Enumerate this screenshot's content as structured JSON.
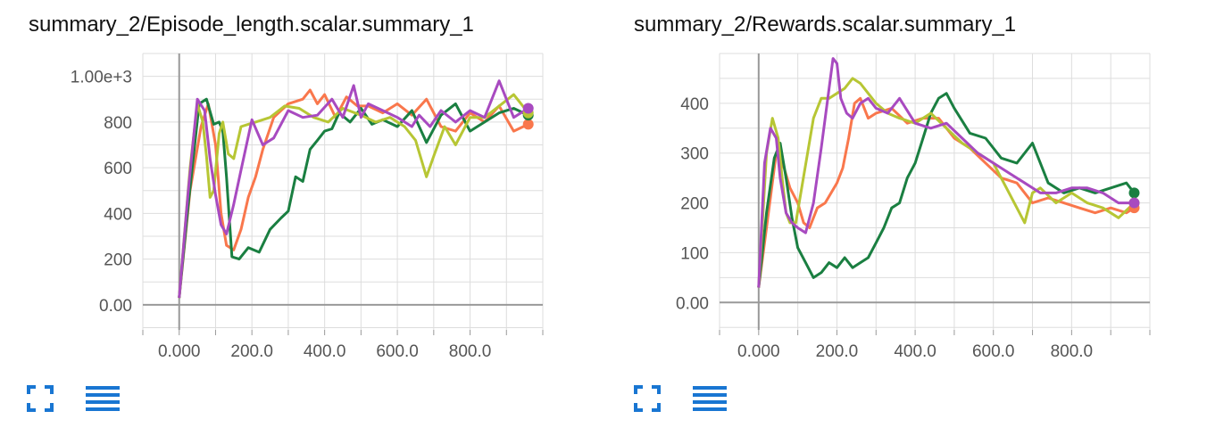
{
  "colors": {
    "orange": "#f9774c",
    "green": "#1a7f41",
    "lime": "#b7c634",
    "purple": "#a84ac0",
    "grid": "#dddddd",
    "axis": "#999999",
    "icon": "#1976d2"
  },
  "icons": {
    "expand": "fullscreen-icon",
    "data": "list-icon"
  },
  "chart_data": [
    {
      "type": "line",
      "title": "summary_2/Episode_length.scalar.summary_1",
      "xlabel": "",
      "ylabel": "",
      "xlim": [
        -100,
        1000
      ],
      "ylim": [
        -110,
        1100
      ],
      "xticks": [
        0,
        200,
        400,
        600,
        800
      ],
      "xtick_labels": [
        "0.000",
        "200.0",
        "400.0",
        "600.0",
        "800.0"
      ],
      "yticks": [
        0,
        200,
        400,
        600,
        800,
        1000
      ],
      "ytick_labels": [
        "0.00",
        "200",
        "400",
        "600",
        "800",
        "1.00e+3"
      ],
      "grid": true,
      "series": [
        {
          "color": "orange",
          "x": [
            0,
            30,
            60,
            80,
            100,
            115,
            130,
            150,
            170,
            190,
            210,
            230,
            260,
            300,
            340,
            360,
            380,
            400,
            430,
            460,
            490,
            520,
            560,
            600,
            640,
            680,
            720,
            760,
            800,
            840,
            880,
            920,
            960
          ],
          "y": [
            30,
            500,
            780,
            880,
            700,
            400,
            260,
            240,
            330,
            470,
            560,
            680,
            820,
            880,
            900,
            940,
            880,
            920,
            820,
            910,
            870,
            870,
            840,
            880,
            830,
            900,
            780,
            760,
            840,
            800,
            870,
            760,
            790
          ]
        },
        {
          "color": "green",
          "x": [
            0,
            25,
            55,
            75,
            95,
            110,
            120,
            130,
            145,
            165,
            190,
            220,
            250,
            280,
            300,
            320,
            340,
            360,
            380,
            400,
            420,
            440,
            470,
            500,
            530,
            560,
            600,
            640,
            680,
            720,
            760,
            800,
            840,
            880,
            920,
            960
          ],
          "y": [
            30,
            440,
            880,
            900,
            790,
            800,
            760,
            560,
            210,
            200,
            250,
            230,
            330,
            380,
            410,
            560,
            540,
            680,
            720,
            760,
            770,
            840,
            800,
            860,
            790,
            810,
            780,
            850,
            710,
            830,
            880,
            760,
            800,
            840,
            860,
            830
          ]
        },
        {
          "color": "lime",
          "x": [
            0,
            30,
            50,
            65,
            75,
            85,
            95,
            110,
            120,
            135,
            150,
            170,
            190,
            210,
            250,
            290,
            330,
            370,
            410,
            450,
            500,
            540,
            580,
            620,
            650,
            680,
            700,
            730,
            760,
            800,
            840,
            880,
            920,
            960
          ],
          "y": [
            30,
            600,
            880,
            800,
            650,
            470,
            500,
            750,
            800,
            660,
            640,
            780,
            790,
            800,
            820,
            870,
            860,
            820,
            800,
            860,
            830,
            800,
            820,
            780,
            720,
            560,
            650,
            780,
            700,
            820,
            820,
            870,
            920,
            840
          ]
        },
        {
          "color": "purple",
          "x": [
            0,
            25,
            50,
            70,
            85,
            100,
            115,
            130,
            150,
            170,
            200,
            230,
            260,
            300,
            340,
            380,
            420,
            450,
            480,
            500,
            520,
            560,
            600,
            640,
            660,
            690,
            720,
            760,
            800,
            840,
            880,
            920,
            960
          ],
          "y": [
            30,
            500,
            900,
            850,
            640,
            480,
            350,
            310,
            440,
            590,
            810,
            700,
            730,
            850,
            820,
            830,
            900,
            820,
            960,
            820,
            880,
            850,
            820,
            780,
            830,
            780,
            850,
            800,
            850,
            820,
            980,
            820,
            860
          ]
        }
      ]
    },
    {
      "type": "line",
      "title": "summary_2/Rewards.scalar.summary_1",
      "xlabel": "",
      "ylabel": "",
      "xlim": [
        -100,
        1000
      ],
      "ylim": [
        -55,
        500
      ],
      "xticks": [
        0,
        200,
        400,
        600,
        800
      ],
      "xtick_labels": [
        "0.000",
        "200.0",
        "400.0",
        "600.0",
        "800.0"
      ],
      "yticks": [
        0,
        100,
        200,
        300,
        400
      ],
      "ytick_labels": [
        "0.00",
        "100",
        "200",
        "300",
        "400"
      ],
      "grid": true,
      "series": [
        {
          "color": "orange",
          "x": [
            0,
            20,
            45,
            65,
            80,
            100,
            115,
            130,
            150,
            170,
            200,
            215,
            230,
            245,
            260,
            280,
            300,
            340,
            380,
            420,
            460,
            500,
            540,
            580,
            620,
            660,
            700,
            740,
            780,
            820,
            860,
            900,
            940,
            960
          ],
          "y": [
            30,
            150,
            300,
            270,
            230,
            200,
            160,
            150,
            190,
            200,
            240,
            270,
            330,
            400,
            410,
            370,
            380,
            390,
            360,
            370,
            370,
            330,
            310,
            280,
            250,
            240,
            200,
            210,
            200,
            190,
            180,
            190,
            180,
            190
          ]
        },
        {
          "color": "green",
          "x": [
            0,
            20,
            40,
            55,
            70,
            85,
            100,
            120,
            140,
            160,
            180,
            200,
            220,
            240,
            260,
            280,
            300,
            320,
            340,
            360,
            380,
            400,
            420,
            440,
            460,
            480,
            500,
            540,
            580,
            620,
            660,
            700,
            740,
            780,
            820,
            860,
            900,
            940,
            960
          ],
          "y": [
            30,
            180,
            290,
            320,
            250,
            170,
            110,
            80,
            50,
            60,
            80,
            70,
            90,
            70,
            80,
            90,
            120,
            150,
            190,
            200,
            250,
            280,
            330,
            380,
            410,
            420,
            390,
            340,
            330,
            290,
            280,
            320,
            240,
            220,
            230,
            220,
            230,
            240,
            220
          ]
        },
        {
          "color": "lime",
          "x": [
            0,
            20,
            35,
            50,
            60,
            70,
            80,
            95,
            110,
            125,
            140,
            160,
            180,
            200,
            220,
            240,
            260,
            280,
            300,
            330,
            360,
            400,
            440,
            480,
            520,
            560,
            600,
            640,
            680,
            700,
            720,
            760,
            800,
            840,
            880,
            920,
            960
          ],
          "y": [
            30,
            300,
            370,
            330,
            250,
            180,
            160,
            160,
            230,
            300,
            370,
            410,
            410,
            420,
            430,
            450,
            440,
            420,
            400,
            380,
            370,
            360,
            380,
            350,
            320,
            300,
            280,
            220,
            160,
            220,
            230,
            200,
            220,
            200,
            190,
            170,
            200
          ]
        },
        {
          "color": "purple",
          "x": [
            0,
            15,
            30,
            45,
            55,
            70,
            85,
            100,
            120,
            140,
            160,
            180,
            190,
            200,
            210,
            225,
            240,
            260,
            280,
            300,
            330,
            360,
            400,
            440,
            480,
            520,
            560,
            600,
            640,
            680,
            720,
            760,
            800,
            840,
            880,
            920,
            960
          ],
          "y": [
            30,
            280,
            350,
            330,
            250,
            180,
            160,
            150,
            140,
            200,
            310,
            430,
            490,
            480,
            410,
            380,
            370,
            400,
            410,
            390,
            380,
            410,
            360,
            350,
            360,
            330,
            300,
            280,
            260,
            240,
            220,
            220,
            230,
            230,
            220,
            200,
            200
          ]
        }
      ]
    }
  ]
}
